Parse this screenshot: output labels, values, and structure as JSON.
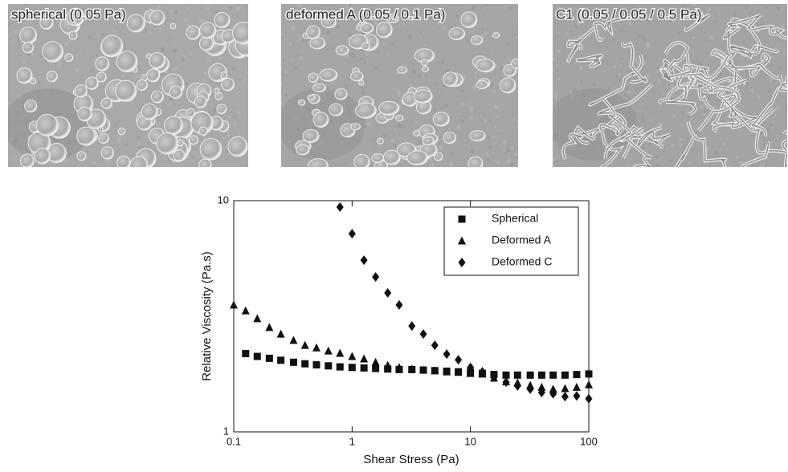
{
  "images": [
    {
      "label": "spherical (0.05 Pa)"
    },
    {
      "label": "deformed A (0.05 / 0.1 Pa)"
    },
    {
      "label": "C1 (0.05 / 0.05 / 0.5 Pa)"
    }
  ],
  "chart_data": {
    "type": "scatter",
    "x_label": "Shear Stress (Pa)",
    "y_label": "Relative Viscosity (Pa.s)",
    "xlog": true,
    "ylog": true,
    "xlim": [
      0.1,
      100
    ],
    "ylim": [
      1,
      10
    ],
    "xticks": [
      0.1,
      1,
      10,
      100
    ],
    "yticks": [
      1,
      10
    ],
    "legend": "top-right",
    "series": [
      {
        "name": "Spherical",
        "color": "#111111",
        "marker": "square",
        "x": [
          0.126,
          0.158,
          0.2,
          0.25,
          0.32,
          0.4,
          0.5,
          0.63,
          0.79,
          1,
          1.26,
          1.58,
          2,
          2.5,
          3.2,
          4,
          5,
          6.3,
          7.9,
          10,
          12.6,
          15.8,
          20,
          25,
          32,
          40,
          50,
          63,
          79,
          100
        ],
        "values": [
          2.18,
          2.12,
          2.08,
          2.04,
          2.0,
          1.97,
          1.95,
          1.93,
          1.91,
          1.9,
          1.89,
          1.88,
          1.87,
          1.86,
          1.86,
          1.85,
          1.84,
          1.83,
          1.82,
          1.81,
          1.79,
          1.77,
          1.76,
          1.76,
          1.76,
          1.76,
          1.76,
          1.76,
          1.77,
          1.78
        ]
      },
      {
        "name": "Deformed A",
        "color": "#111111",
        "marker": "triangle",
        "x": [
          0.1,
          0.126,
          0.158,
          0.2,
          0.25,
          0.32,
          0.4,
          0.5,
          0.63,
          0.79,
          1,
          1.26,
          1.58,
          2,
          2.5,
          3.2,
          4,
          5,
          6.3,
          7.9,
          10,
          12.6,
          15.8,
          20,
          25,
          32,
          40,
          50,
          63,
          79,
          100
        ],
        "values": [
          3.54,
          3.34,
          3.09,
          2.83,
          2.65,
          2.49,
          2.37,
          2.31,
          2.24,
          2.19,
          2.12,
          2.07,
          2.0,
          1.94,
          1.9,
          1.87,
          1.85,
          1.84,
          1.82,
          1.81,
          1.79,
          1.78,
          1.71,
          1.65,
          1.63,
          1.59,
          1.56,
          1.53,
          1.54,
          1.56,
          1.6
        ]
      },
      {
        "name": "Deformed C",
        "color": "#111111",
        "marker": "diamond",
        "x": [
          0.79,
          1,
          1.26,
          1.58,
          2,
          2.5,
          3.2,
          4,
          5,
          6.3,
          7.9,
          10,
          12.6,
          15.8,
          20,
          25,
          32,
          40,
          50,
          63,
          79,
          100
        ],
        "values": [
          9.38,
          7.2,
          5.53,
          4.68,
          3.99,
          3.54,
          2.87,
          2.65,
          2.37,
          2.17,
          2.05,
          1.9,
          1.82,
          1.72,
          1.64,
          1.58,
          1.53,
          1.48,
          1.46,
          1.42,
          1.43,
          1.39
        ]
      }
    ]
  }
}
